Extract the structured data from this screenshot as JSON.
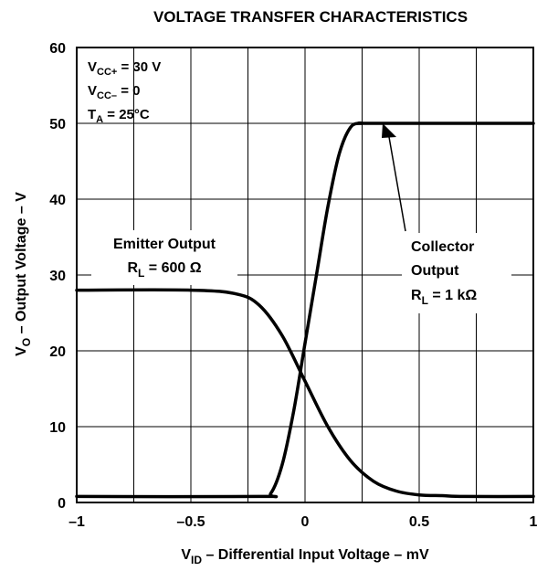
{
  "chart_data": {
    "type": "line",
    "title": "VOLTAGE TRANSFER CHARACTERISTICS",
    "xlabel": {
      "main": "V",
      "sub": "ID",
      "rest": " – Differential Input Voltage – mV"
    },
    "ylabel": {
      "main": "V",
      "sub": "O",
      "rest": " – Output Voltage – V"
    },
    "xlim": [
      -1,
      1
    ],
    "ylim": [
      0,
      60
    ],
    "xticks": [
      -1,
      -0.5,
      0,
      0.5,
      1
    ],
    "xtick_labels": [
      "–1",
      "–0.5",
      "0",
      "0.5",
      "1"
    ],
    "yticks": [
      0,
      10,
      20,
      30,
      40,
      50,
      60
    ],
    "ytick_labels": [
      "0",
      "10",
      "20",
      "30",
      "40",
      "50",
      "60"
    ],
    "grid": true,
    "conditions": [
      {
        "main": "V",
        "sub": "CC+",
        "rest": " = 30 V"
      },
      {
        "main": "V",
        "sub": "CC–",
        "rest": " = 0"
      },
      {
        "main": "T",
        "sub": "A",
        "rest": " = 25°C"
      }
    ],
    "series": [
      {
        "name": "Emitter Output",
        "x": [
          -1,
          -0.5,
          -0.3,
          -0.2,
          -0.1,
          0,
          0.1,
          0.2,
          0.3,
          0.4,
          0.5,
          0.6,
          0.7,
          1
        ],
        "y": [
          28,
          28,
          27.5,
          26,
          22,
          16,
          10,
          5.5,
          2.8,
          1.5,
          1.0,
          0.9,
          0.8,
          0.8
        ]
      },
      {
        "name": "Collector Output",
        "x": [
          -1,
          -0.2,
          -0.15,
          -0.1,
          -0.05,
          0,
          0.05,
          0.1,
          0.15,
          0.2,
          0.25,
          0.3,
          1
        ],
        "y": [
          0.8,
          0.8,
          1.2,
          5,
          12,
          21,
          30,
          39,
          46,
          49.5,
          50,
          50,
          50
        ]
      }
    ],
    "annotations": {
      "emitter": {
        "line1": "Emitter Output",
        "main": "R",
        "sub": "L",
        "rest": " = 600 Ω"
      },
      "collector": {
        "line1": "Collector",
        "line2": "Output",
        "main": "R",
        "sub": "L",
        "rest": " = 1 kΩ"
      }
    }
  }
}
